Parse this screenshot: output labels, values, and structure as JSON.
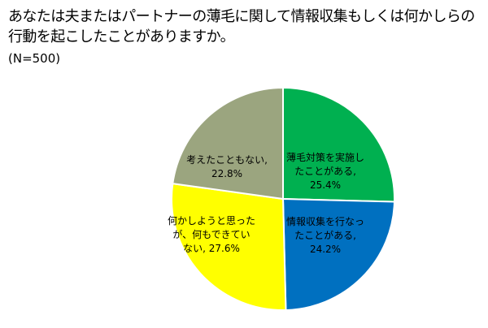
{
  "title_lines": [
    "あなたは夫またはパートナーの薄毛に関して情報収集もしくは何かしらの",
    "行動を起こしたことがありますか。"
  ],
  "subtitle": "(N=500)",
  "chart_data": {
    "type": "pie",
    "title": "あなたは夫またはパートナーの薄毛に関して情報収集もしくは何かしらの行動を起こしたことがありますか。",
    "subtitle": "(N=500)",
    "start_angle_deg": 0,
    "direction": "clockwise",
    "slices": [
      {
        "label_lines": [
          "薄毛対策を実施し",
          "たことがある,",
          "25.4%"
        ],
        "value": 25.4,
        "color": "#00b050"
      },
      {
        "label_lines": [
          "情報収集を行なっ",
          "たことがある,",
          "24.2%"
        ],
        "value": 24.2,
        "color": "#0070c0"
      },
      {
        "label_lines": [
          "何かしようと思った",
          "が、何もできてい",
          "ない, 27.6%"
        ],
        "value": 27.6,
        "color": "#ffff00"
      },
      {
        "label_lines": [
          "考えたこともない,",
          "22.8%"
        ],
        "value": 22.8,
        "color": "#9ba57f"
      }
    ]
  }
}
